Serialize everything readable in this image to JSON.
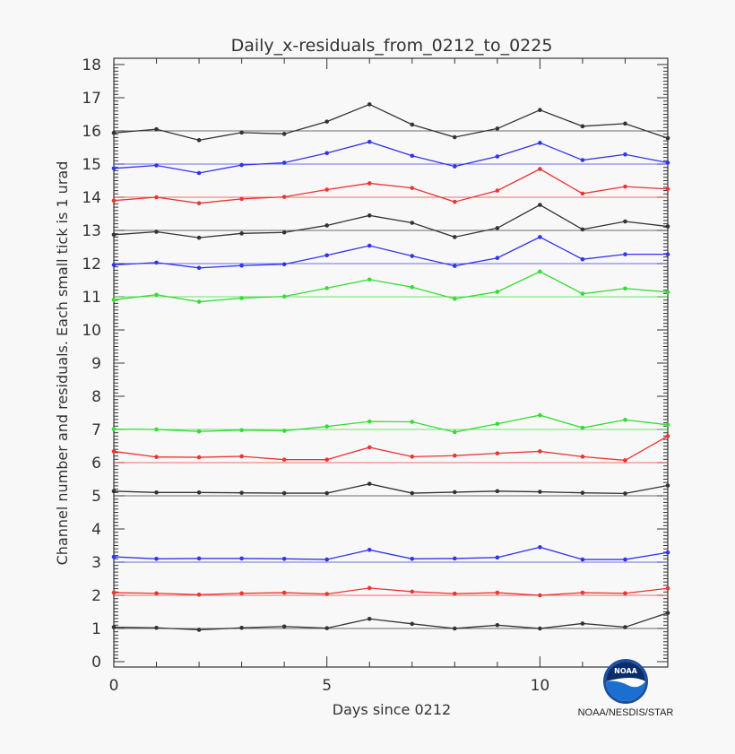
{
  "chart_data": {
    "type": "line",
    "title": "Daily_x-residuals_from_0212_to_0225",
    "xlabel": "Days since 0212",
    "ylabel": "Channel number and residuals. Each small tick is 1 urad",
    "xlim": [
      0,
      13
    ],
    "ylim": [
      0,
      18
    ],
    "x_ticks": [
      0,
      5,
      10
    ],
    "y_ticks": [
      0,
      1,
      2,
      3,
      4,
      5,
      6,
      7,
      8,
      9,
      10,
      11,
      12,
      13,
      14,
      15,
      16,
      17,
      18
    ],
    "grid": false,
    "x": [
      0,
      1,
      2,
      3,
      4,
      5,
      6,
      7,
      8,
      9,
      10,
      11,
      12,
      13
    ],
    "series": [
      {
        "channel": 1,
        "color": "#333333",
        "values": [
          1.04,
          1.02,
          0.96,
          1.02,
          1.06,
          1.01,
          1.29,
          1.14,
          1.0,
          1.1,
          1.0,
          1.15,
          1.04,
          1.47
        ]
      },
      {
        "channel": 2,
        "color": "#ee3333",
        "values": [
          2.08,
          2.06,
          2.02,
          2.06,
          2.08,
          2.04,
          2.22,
          2.11,
          2.05,
          2.08,
          2.0,
          2.08,
          2.06,
          2.21
        ]
      },
      {
        "channel": 3,
        "color": "#3333ee",
        "values": [
          3.16,
          3.1,
          3.11,
          3.11,
          3.1,
          3.08,
          3.37,
          3.1,
          3.11,
          3.14,
          3.45,
          3.08,
          3.08,
          3.29
        ]
      },
      {
        "channel": 5,
        "color": "#333333",
        "values": [
          5.14,
          5.1,
          5.1,
          5.09,
          5.08,
          5.08,
          5.36,
          5.08,
          5.11,
          5.14,
          5.12,
          5.09,
          5.07,
          5.31
        ]
      },
      {
        "channel": 6,
        "color": "#ee3333",
        "values": [
          6.34,
          6.17,
          6.16,
          6.19,
          6.09,
          6.09,
          6.46,
          6.18,
          6.21,
          6.28,
          6.34,
          6.18,
          6.07,
          6.8
        ]
      },
      {
        "channel": 7,
        "color": "#33dd33",
        "values": [
          7.01,
          7.0,
          6.94,
          6.98,
          6.96,
          7.09,
          7.24,
          7.23,
          6.92,
          7.17,
          7.43,
          7.05,
          7.29,
          7.14
        ]
      },
      {
        "channel": 11,
        "color": "#33dd33",
        "values": [
          10.91,
          11.06,
          10.85,
          10.96,
          11.01,
          11.26,
          11.52,
          11.29,
          10.94,
          11.15,
          11.76,
          11.09,
          11.25,
          11.14
        ]
      },
      {
        "channel": 12,
        "color": "#3333ee",
        "values": [
          11.96,
          12.03,
          11.87,
          11.94,
          11.98,
          12.25,
          12.54,
          12.23,
          11.93,
          12.17,
          12.8,
          12.13,
          12.28,
          12.28
        ]
      },
      {
        "channel": 13,
        "color": "#333333",
        "values": [
          12.87,
          12.96,
          12.78,
          12.91,
          12.94,
          13.15,
          13.45,
          13.23,
          12.8,
          13.07,
          13.77,
          13.03,
          13.27,
          13.12
        ]
      },
      {
        "channel": 14,
        "color": "#ee3333",
        "values": [
          13.9,
          14.0,
          13.82,
          13.95,
          14.01,
          14.23,
          14.42,
          14.28,
          13.86,
          14.2,
          14.85,
          14.11,
          14.32,
          14.25
        ]
      },
      {
        "channel": 15,
        "color": "#3333ee",
        "values": [
          14.87,
          14.96,
          14.73,
          14.97,
          15.04,
          15.33,
          15.67,
          15.25,
          14.93,
          15.23,
          15.64,
          15.12,
          15.29,
          15.04
        ]
      },
      {
        "channel": 16,
        "color": "#333333",
        "values": [
          15.94,
          16.05,
          15.72,
          15.95,
          15.91,
          16.28,
          16.8,
          16.19,
          15.81,
          16.07,
          16.63,
          16.14,
          16.22,
          15.78
        ]
      }
    ]
  },
  "logo": {
    "text": "NOAA",
    "caption": "NOAA/NESDIS/STAR"
  }
}
